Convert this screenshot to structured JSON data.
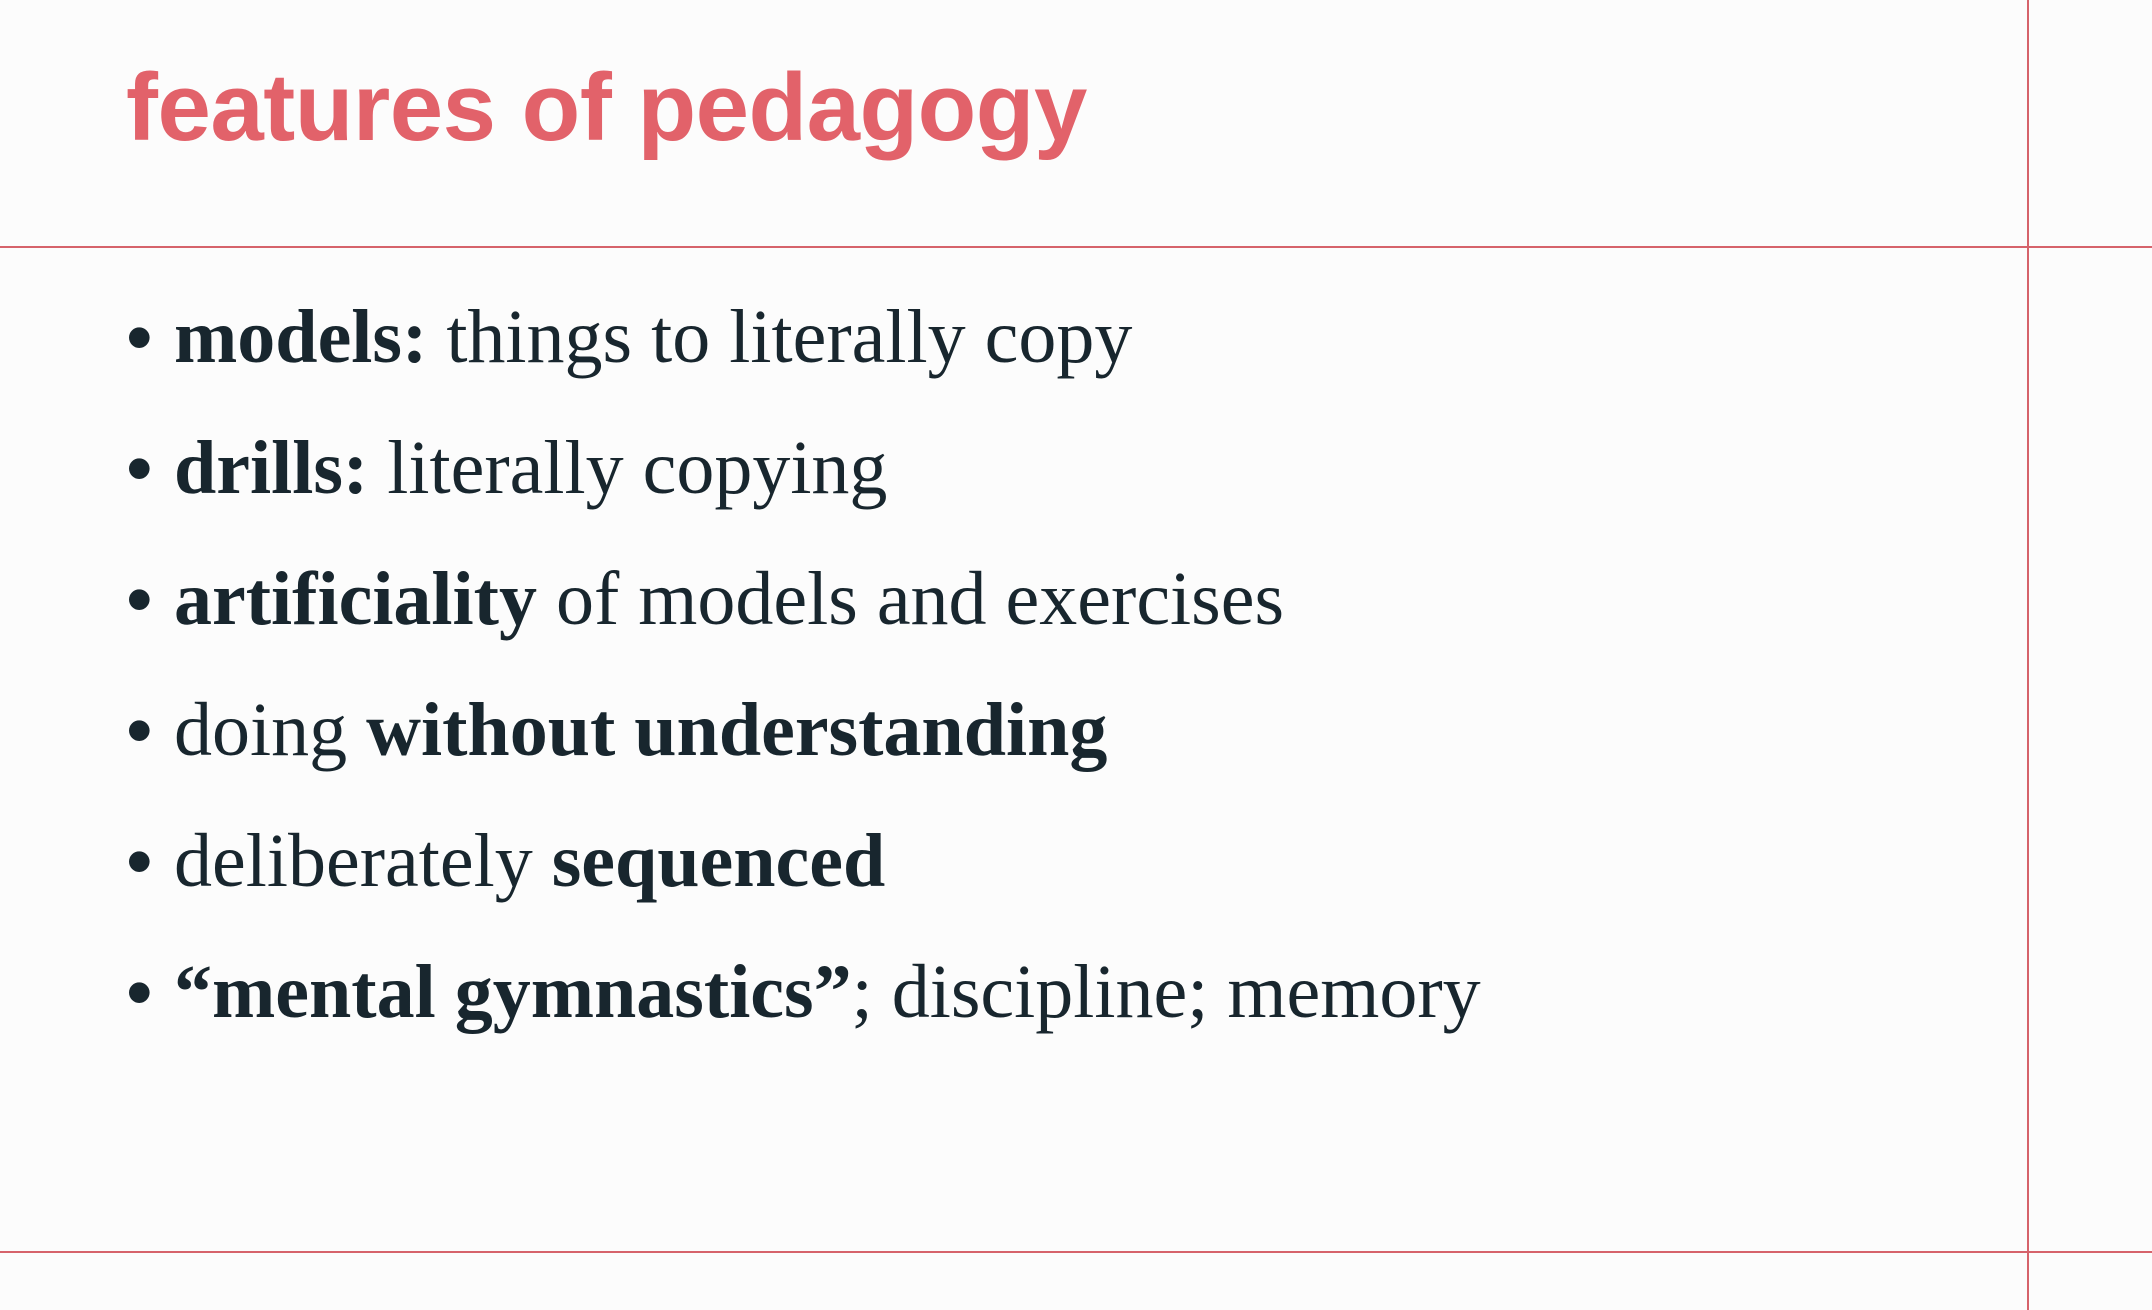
{
  "slide": {
    "title": "features of pedagogy",
    "bullet_symbol": "•",
    "bullets": [
      {
        "bold_lead": "models:",
        "rest": " things to literally copy"
      },
      {
        "bold_lead": "drills:",
        "rest": " literally copying"
      },
      {
        "bold_lead": "artificiality",
        "rest": " of models and exercises"
      },
      {
        "plain_lead": "doing ",
        "bold_tail": "without understanding"
      },
      {
        "plain_lead": "deliberately ",
        "bold_tail": "sequenced"
      },
      {
        "bold_lead": "“mental gymnastics”",
        "rest": "; discipline; memory"
      }
    ]
  },
  "colors": {
    "accent": "#e2626a",
    "rule": "#d6636b",
    "body_text": "#18262e",
    "background": "#fcfcfc"
  }
}
